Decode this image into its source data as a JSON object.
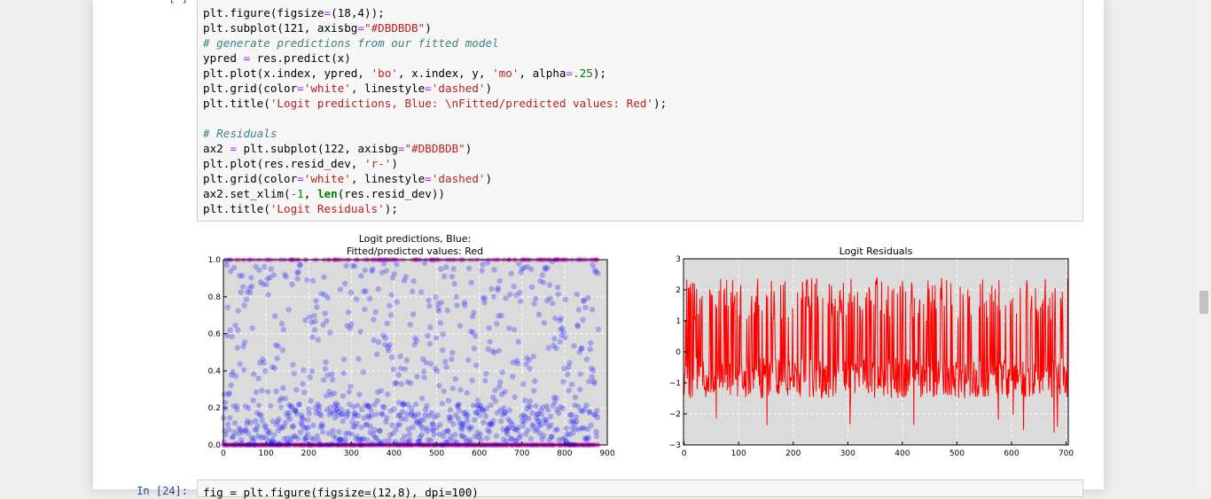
{
  "cell_top": {
    "prompt_fragment": "[ ]"
  },
  "code_lines": [
    [
      {
        "t": "plt.figure(figsize"
      },
      {
        "t": "=",
        "c": "op"
      },
      {
        "t": "(18,4));"
      }
    ],
    [
      {
        "t": "plt.subplot(121, axisbg"
      },
      {
        "t": "=",
        "c": "op"
      },
      {
        "t": "\"#DBDBDB\"",
        "c": "s"
      },
      {
        "t": ")"
      }
    ],
    [
      {
        "t": "# generate predictions from our fitted model",
        "c": "c"
      }
    ],
    [
      {
        "t": "ypred "
      },
      {
        "t": "=",
        "c": "op"
      },
      {
        "t": " res.predict(x)"
      }
    ],
    [
      {
        "t": "plt.plot(x.index, ypred, "
      },
      {
        "t": "'bo'",
        "c": "s"
      },
      {
        "t": ", x.index, y, "
      },
      {
        "t": "'mo'",
        "c": "s"
      },
      {
        "t": ", alpha"
      },
      {
        "t": "=",
        "c": "op"
      },
      {
        "t": ".25",
        "c": "n"
      },
      {
        "t": ");"
      }
    ],
    [
      {
        "t": "plt.grid(color"
      },
      {
        "t": "=",
        "c": "op"
      },
      {
        "t": "'white'",
        "c": "s"
      },
      {
        "t": ", linestyle"
      },
      {
        "t": "=",
        "c": "op"
      },
      {
        "t": "'dashed'",
        "c": "s"
      },
      {
        "t": ")"
      }
    ],
    [
      {
        "t": "plt.title("
      },
      {
        "t": "'Logit predictions, Blue: \\nFitted/predicted values: Red'",
        "c": "s"
      },
      {
        "t": ");"
      }
    ],
    [
      {
        "t": ""
      }
    ],
    [
      {
        "t": "# Residuals",
        "c": "c"
      }
    ],
    [
      {
        "t": "ax2 "
      },
      {
        "t": "=",
        "c": "op"
      },
      {
        "t": " plt.subplot(122, axisbg"
      },
      {
        "t": "=",
        "c": "op"
      },
      {
        "t": "\"#DBDBDB\"",
        "c": "s"
      },
      {
        "t": ")"
      }
    ],
    [
      {
        "t": "plt.plot(res.resid_dev, "
      },
      {
        "t": "'r-'",
        "c": "s"
      },
      {
        "t": ")"
      }
    ],
    [
      {
        "t": "plt.grid(color"
      },
      {
        "t": "=",
        "c": "op"
      },
      {
        "t": "'white'",
        "c": "s"
      },
      {
        "t": ", linestyle"
      },
      {
        "t": "=",
        "c": "op"
      },
      {
        "t": "'dashed'",
        "c": "s"
      },
      {
        "t": ")"
      }
    ],
    [
      {
        "t": "ax2.set_xlim("
      },
      {
        "t": "-",
        "c": "op"
      },
      {
        "t": "1",
        "c": "n"
      },
      {
        "t": ", "
      },
      {
        "t": "len",
        "c": "kw"
      },
      {
        "t": "(res.resid_dev))"
      }
    ],
    [
      {
        "t": "plt.title("
      },
      {
        "t": "'Logit Residuals'",
        "c": "s"
      },
      {
        "t": ");"
      }
    ]
  ],
  "next_cell": {
    "prompt": "In [24]:",
    "code_fragment": "fig = plt.figure(figsize=(12,8), dpi=100)"
  },
  "chart_data": [
    {
      "type": "scatter",
      "title": "Logit predictions, Blue:\nFitted/predicted values: Red",
      "title_lines": [
        "Logit predictions, Blue:",
        "Fitted/predicted values: Red"
      ],
      "xlim": [
        0,
        900
      ],
      "ylim": [
        0.0,
        1.0
      ],
      "xticks": [
        0,
        100,
        200,
        300,
        400,
        500,
        600,
        700,
        800,
        900
      ],
      "yticks": [
        0.0,
        0.2,
        0.4,
        0.6,
        0.8,
        1.0
      ],
      "ytick_labels": [
        "0.0",
        "0.2",
        "0.4",
        "0.6",
        "0.8",
        "1.0"
      ],
      "background": "#DBDBDB",
      "grid": true,
      "grid_style": "dashed",
      "n_points": 880,
      "series": [
        {
          "marker": "circle",
          "color": "#0000ff",
          "alpha": 0.25,
          "y_values": "predicted probabilities spread over 0-1, denser near 0.0-0.2"
        },
        {
          "marker": "circle",
          "color": "#bf00bf",
          "alpha": 0.25,
          "y_values": [
            0,
            1
          ]
        }
      ]
    },
    {
      "type": "line",
      "title": "Logit Residuals",
      "xlim": [
        -1,
        704
      ],
      "ylim": [
        -3,
        3
      ],
      "xticks": [
        0,
        100,
        200,
        300,
        400,
        500,
        600,
        700
      ],
      "yticks": [
        -3,
        -2,
        -1,
        0,
        1,
        2,
        3
      ],
      "ytick_labels": [
        "−3",
        "−2",
        "−1",
        "0",
        "1",
        "2",
        "3"
      ],
      "background": "#DBDBDB",
      "grid": true,
      "grid_style": "dashed",
      "n_points": 704,
      "series": [
        {
          "color": "#ff0000",
          "y_range": [
            -2.7,
            2.5
          ],
          "typical": "values mostly between -1.0 and 1.5"
        }
      ]
    }
  ]
}
